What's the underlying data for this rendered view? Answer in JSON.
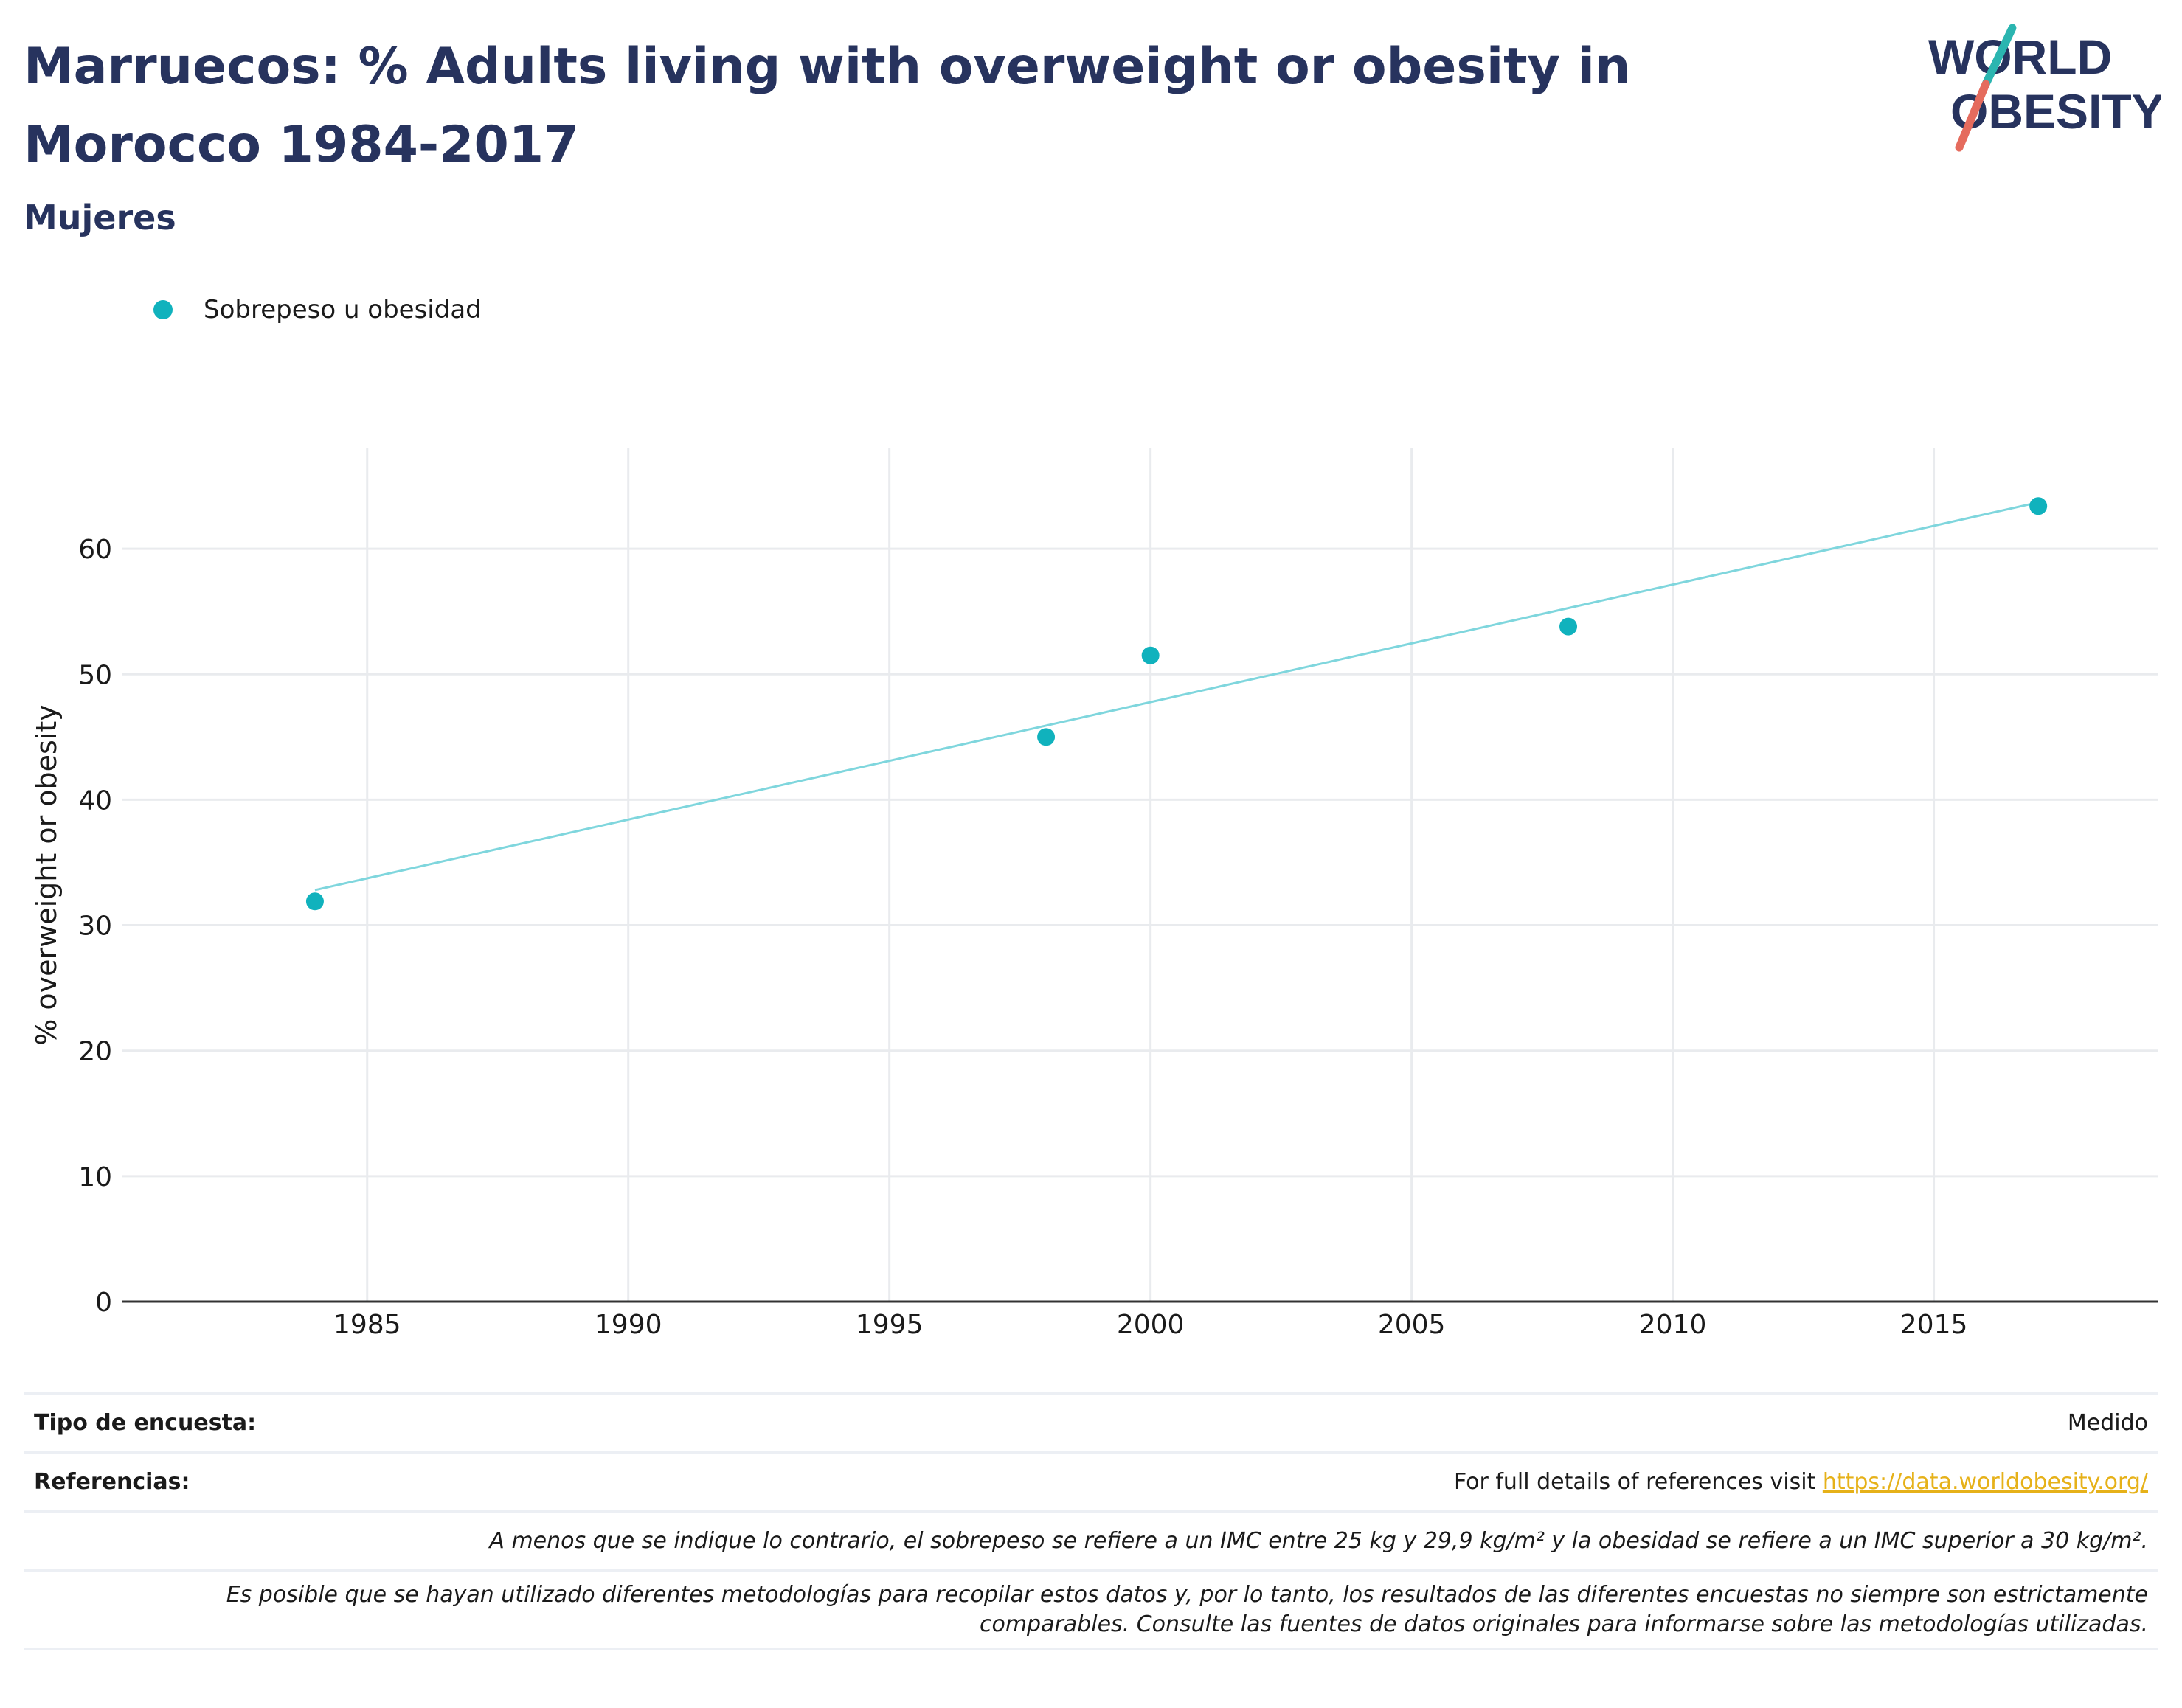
{
  "header": {
    "title": "Marruecos: % Adults living with overweight or obesity in Morocco 1984-2017",
    "subtitle": "Mujeres",
    "logo_line1": "WORLD",
    "logo_line2": "OBESITY"
  },
  "colors": {
    "title": "#27335e",
    "series": "#10b2bd",
    "trend": "#7fd6dd",
    "link": "#e6b119",
    "logo_teal": "#2bb5b0",
    "logo_coral": "#e56b5d"
  },
  "chart_data": {
    "type": "scatter",
    "title": "",
    "xlabel": "",
    "ylabel": "% overweight or obesity",
    "xlim": [
      1980.3,
      2019.3
    ],
    "ylim": [
      0,
      68
    ],
    "x_ticks": [
      1985,
      1990,
      1995,
      2000,
      2005,
      2010,
      2015
    ],
    "y_ticks": [
      0,
      10,
      20,
      30,
      40,
      50,
      60
    ],
    "grid": true,
    "legend_position": "top-left",
    "series": [
      {
        "name": "Sobrepeso u obesidad",
        "x": [
          1984,
          1998,
          2000,
          2008,
          2017
        ],
        "y": [
          31.9,
          45.0,
          51.5,
          53.8,
          63.4
        ]
      }
    ],
    "trendline": {
      "x": [
        1984,
        2017
      ],
      "y": [
        32.8,
        63.7
      ]
    }
  },
  "footer": {
    "survey_label": "Tipo de encuesta:",
    "survey_value": "Medido",
    "refs_label": "Referencias:",
    "refs_text": "For full details of references visit ",
    "refs_link": "https://data.worldobesity.org/",
    "note1": "A menos que se indique lo contrario, el sobrepeso se refiere a un IMC entre 25 kg y 29,9 kg/m² y la obesidad se refiere a un IMC superior a 30 kg/m².",
    "note2_line1": "Es posible que se hayan utilizado diferentes metodologías para recopilar estos datos y, por lo tanto, los resultados de las diferentes encuestas no siempre son estrictamente",
    "note2_line2": "comparables. Consulte las fuentes de datos originales para informarse sobre las metodologías utilizadas."
  }
}
